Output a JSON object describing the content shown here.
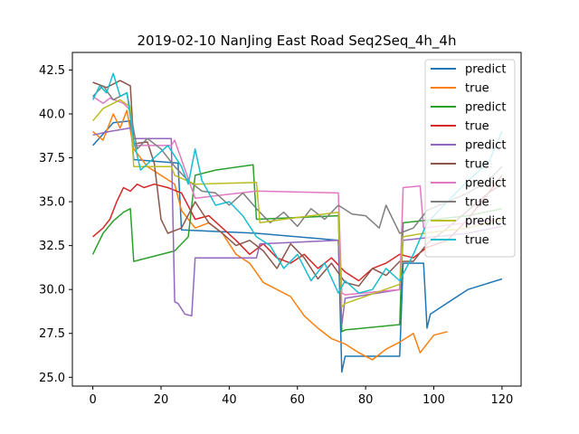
{
  "chart_data": {
    "type": "line",
    "title": "2019-02-10 NanJing East Road Seq2Seq_4h_4h",
    "xlabel": "",
    "ylabel": "",
    "xlim": [
      -6,
      125.6
    ],
    "ylim": [
      24.5,
      43.5
    ],
    "xticks": [
      0,
      20,
      40,
      60,
      80,
      100,
      120
    ],
    "yticks": [
      25.0,
      27.5,
      30.0,
      32.5,
      35.0,
      37.5,
      40.0,
      42.5
    ],
    "ytick_labels": [
      "25.0",
      "27.5",
      "30.0",
      "32.5",
      "35.0",
      "37.5",
      "40.0",
      "42.5"
    ],
    "grid": false,
    "legend_position": "right",
    "series": [
      {
        "name": "predict",
        "color": "#1f77b4",
        "segments": [
          [
            0,
            38.2
          ],
          [
            6,
            39.5
          ],
          [
            11,
            39.6
          ],
          [
            12,
            37.4
          ],
          [
            25,
            37.2
          ],
          [
            26,
            33.4
          ],
          [
            48,
            33.2
          ],
          [
            72,
            32.8
          ],
          [
            73,
            25.3
          ],
          [
            74,
            26.2
          ],
          [
            90,
            26.2
          ],
          [
            91,
            31.5
          ],
          [
            97,
            31.5
          ],
          [
            98,
            27.8
          ],
          [
            99,
            28.6
          ],
          [
            110,
            30.0
          ],
          [
            120,
            30.6
          ]
        ]
      },
      {
        "name": "true",
        "color": "#ff7f0e",
        "segments": [
          [
            0,
            39.0
          ],
          [
            3,
            38.5
          ],
          [
            6,
            40.0
          ],
          [
            8,
            39.2
          ],
          [
            10,
            40.2
          ],
          [
            12,
            38.0
          ],
          [
            16,
            37.0
          ],
          [
            20,
            36.5
          ],
          [
            24,
            36.0
          ],
          [
            26,
            34.5
          ],
          [
            30,
            33.5
          ],
          [
            34,
            33.8
          ],
          [
            38,
            33.2
          ],
          [
            42,
            32.0
          ],
          [
            46,
            31.5
          ],
          [
            50,
            30.4
          ],
          [
            54,
            30.0
          ],
          [
            58,
            29.6
          ],
          [
            62,
            28.5
          ],
          [
            66,
            27.8
          ],
          [
            70,
            27.2
          ],
          [
            74,
            26.9
          ],
          [
            78,
            26.4
          ],
          [
            82,
            26.0
          ],
          [
            86,
            26.6
          ],
          [
            90,
            27.0
          ],
          [
            94,
            27.5
          ],
          [
            96,
            26.4
          ],
          [
            100,
            27.4
          ],
          [
            104,
            27.6
          ]
        ]
      },
      {
        "name": "predict",
        "color": "#2ca02c",
        "segments": [
          [
            0,
            32.0
          ],
          [
            3,
            33.2
          ],
          [
            6,
            33.9
          ],
          [
            9,
            34.4
          ],
          [
            11,
            34.6
          ],
          [
            12,
            31.6
          ],
          [
            24,
            32.2
          ],
          [
            28,
            33.0
          ],
          [
            30,
            36.5
          ],
          [
            36,
            36.8
          ],
          [
            47,
            37.1
          ],
          [
            48,
            34.0
          ],
          [
            72,
            34.2
          ],
          [
            73,
            27.6
          ],
          [
            74,
            27.7
          ],
          [
            90,
            28.0
          ],
          [
            91,
            33.8
          ],
          [
            110,
            34.2
          ],
          [
            120,
            34.6
          ]
        ]
      },
      {
        "name": "true",
        "color": "#d62728",
        "segments": [
          [
            0,
            33.0
          ],
          [
            3,
            33.5
          ],
          [
            5,
            34.0
          ],
          [
            7,
            35.0
          ],
          [
            9,
            35.8
          ],
          [
            11,
            35.6
          ],
          [
            13,
            36.0
          ],
          [
            15,
            35.8
          ],
          [
            18,
            36.0
          ],
          [
            22,
            35.8
          ],
          [
            26,
            35.5
          ],
          [
            30,
            34.0
          ],
          [
            34,
            34.2
          ],
          [
            38,
            33.5
          ],
          [
            42,
            32.8
          ],
          [
            46,
            32.0
          ],
          [
            50,
            32.6
          ],
          [
            54,
            31.8
          ],
          [
            58,
            31.5
          ],
          [
            62,
            32.0
          ],
          [
            66,
            31.2
          ],
          [
            70,
            31.8
          ],
          [
            74,
            31.0
          ],
          [
            78,
            30.5
          ],
          [
            82,
            31.2
          ],
          [
            86,
            31.5
          ],
          [
            90,
            32.0
          ],
          [
            94,
            31.8
          ],
          [
            98,
            32.4
          ],
          [
            104,
            32.8
          ],
          [
            110,
            34.0
          ],
          [
            116,
            35.5
          ],
          [
            120,
            36.5
          ]
        ]
      },
      {
        "name": "predict",
        "color": "#9467bd",
        "segments": [
          [
            0,
            38.8
          ],
          [
            5,
            39.0
          ],
          [
            11,
            39.2
          ],
          [
            12,
            38.6
          ],
          [
            23,
            38.6
          ],
          [
            24,
            29.3
          ],
          [
            25,
            29.2
          ],
          [
            27,
            28.6
          ],
          [
            29,
            28.5
          ],
          [
            30,
            31.8
          ],
          [
            48,
            31.8
          ],
          [
            49,
            32.6
          ],
          [
            72,
            32.8
          ],
          [
            73,
            28.0
          ],
          [
            74,
            29.5
          ],
          [
            90,
            30.0
          ],
          [
            91,
            32.8
          ],
          [
            110,
            33.2
          ],
          [
            120,
            33.6
          ]
        ]
      },
      {
        "name": "true",
        "color": "#8c564b",
        "segments": [
          [
            0,
            41.8
          ],
          [
            4,
            41.5
          ],
          [
            8,
            41.9
          ],
          [
            11,
            41.6
          ],
          [
            12,
            38.3
          ],
          [
            16,
            38.4
          ],
          [
            18,
            37.2
          ],
          [
            20,
            34.0
          ],
          [
            22,
            33.2
          ],
          [
            26,
            33.5
          ],
          [
            30,
            35.0
          ],
          [
            34,
            33.8
          ],
          [
            38,
            33.2
          ],
          [
            42,
            32.5
          ],
          [
            46,
            32.8
          ],
          [
            50,
            32.2
          ],
          [
            54,
            31.2
          ],
          [
            58,
            32.6
          ],
          [
            62,
            31.8
          ],
          [
            66,
            30.6
          ],
          [
            70,
            31.5
          ],
          [
            74,
            30.4
          ],
          [
            78,
            30.2
          ],
          [
            82,
            31.2
          ],
          [
            86,
            30.8
          ],
          [
            90,
            31.6
          ],
          [
            94,
            31.6
          ],
          [
            98,
            32.6
          ],
          [
            104,
            33.5
          ],
          [
            110,
            34.5
          ],
          [
            116,
            35.5
          ],
          [
            120,
            36.0
          ]
        ]
      },
      {
        "name": "predict",
        "color": "#e377c2",
        "segments": [
          [
            0,
            41.0
          ],
          [
            3,
            40.6
          ],
          [
            5,
            40.9
          ],
          [
            9,
            40.6
          ],
          [
            11,
            40.2
          ],
          [
            12,
            38.2
          ],
          [
            23,
            38.2
          ],
          [
            24,
            38.5
          ],
          [
            30,
            35.2
          ],
          [
            48,
            35.6
          ],
          [
            49,
            35.6
          ],
          [
            72,
            35.5
          ],
          [
            73,
            29.8
          ],
          [
            74,
            29.7
          ],
          [
            90,
            30.0
          ],
          [
            91,
            35.8
          ],
          [
            96,
            35.9
          ],
          [
            97,
            33.5
          ],
          [
            110,
            33.8
          ],
          [
            120,
            34.0
          ]
        ]
      },
      {
        "name": "true",
        "color": "#7f7f7f",
        "segments": [
          [
            0,
            41.0
          ],
          [
            3,
            41.6
          ],
          [
            6,
            40.8
          ],
          [
            10,
            41.2
          ],
          [
            13,
            38.0
          ],
          [
            16,
            38.6
          ],
          [
            20,
            38.0
          ],
          [
            24,
            37.0
          ],
          [
            28,
            36.2
          ],
          [
            32,
            35.6
          ],
          [
            36,
            35.5
          ],
          [
            40,
            34.8
          ],
          [
            44,
            35.5
          ],
          [
            48,
            34.6
          ],
          [
            52,
            33.8
          ],
          [
            56,
            34.4
          ],
          [
            60,
            33.6
          ],
          [
            64,
            34.6
          ],
          [
            68,
            34.0
          ],
          [
            72,
            34.8
          ],
          [
            76,
            34.3
          ],
          [
            80,
            34.2
          ],
          [
            84,
            33.5
          ],
          [
            86,
            34.8
          ],
          [
            90,
            33.2
          ],
          [
            94,
            33.5
          ],
          [
            98,
            34.5
          ],
          [
            104,
            35.0
          ],
          [
            110,
            35.5
          ],
          [
            116,
            36.2
          ],
          [
            120,
            37.0
          ]
        ]
      },
      {
        "name": "predict",
        "color": "#bcbd22",
        "segments": [
          [
            0,
            39.6
          ],
          [
            3,
            40.3
          ],
          [
            8,
            40.8
          ],
          [
            11,
            40.4
          ],
          [
            12,
            37.0
          ],
          [
            23,
            37.0
          ],
          [
            24,
            36.5
          ],
          [
            30,
            36.0
          ],
          [
            48,
            36.1
          ],
          [
            49,
            33.8
          ],
          [
            56,
            34.0
          ],
          [
            72,
            34.4
          ],
          [
            73,
            29.0
          ],
          [
            74,
            29.2
          ],
          [
            90,
            30.3
          ],
          [
            91,
            33.0
          ],
          [
            97,
            33.2
          ],
          [
            110,
            33.5
          ],
          [
            120,
            34.0
          ]
        ]
      },
      {
        "name": "true",
        "color": "#17becf",
        "segments": [
          [
            0,
            40.8
          ],
          [
            2,
            41.6
          ],
          [
            4,
            41.2
          ],
          [
            6,
            42.3
          ],
          [
            8,
            41.0
          ],
          [
            10,
            41.2
          ],
          [
            12,
            38.5
          ],
          [
            14,
            36.8
          ],
          [
            18,
            37.5
          ],
          [
            22,
            38.2
          ],
          [
            26,
            37.0
          ],
          [
            28,
            36.0
          ],
          [
            30,
            38.0
          ],
          [
            32,
            36.2
          ],
          [
            36,
            34.8
          ],
          [
            40,
            35.0
          ],
          [
            44,
            34.2
          ],
          [
            48,
            33.0
          ],
          [
            52,
            32.5
          ],
          [
            56,
            31.2
          ],
          [
            60,
            32.0
          ],
          [
            64,
            30.5
          ],
          [
            68,
            31.5
          ],
          [
            72,
            29.8
          ],
          [
            74,
            30.5
          ],
          [
            78,
            29.8
          ],
          [
            82,
            30.0
          ],
          [
            86,
            31.2
          ],
          [
            90,
            30.5
          ],
          [
            94,
            32.0
          ],
          [
            98,
            33.8
          ],
          [
            104,
            35.0
          ],
          [
            110,
            36.2
          ],
          [
            116,
            37.2
          ],
          [
            120,
            39.0
          ]
        ]
      }
    ]
  }
}
